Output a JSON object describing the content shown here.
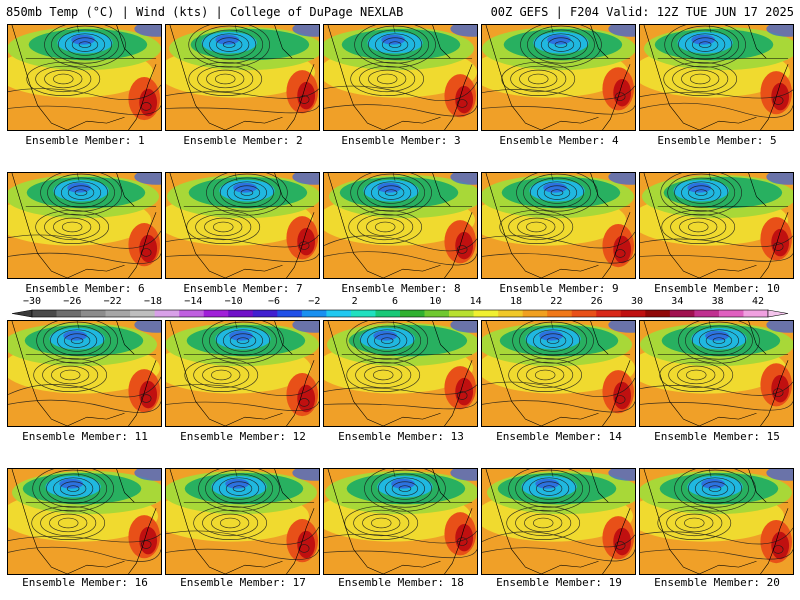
{
  "header": {
    "title_left": "850mb Temp (°C) | Wind (kts) | College of DuPage NEXLAB",
    "title_right": "00Z GEFS | F204 Valid: 12Z TUE JUN 17 2025"
  },
  "members": [
    {
      "label": "Ensemble Member: 1"
    },
    {
      "label": "Ensemble Member: 2"
    },
    {
      "label": "Ensemble Member: 3"
    },
    {
      "label": "Ensemble Member: 4"
    },
    {
      "label": "Ensemble Member: 5"
    },
    {
      "label": "Ensemble Member: 6"
    },
    {
      "label": "Ensemble Member: 7"
    },
    {
      "label": "Ensemble Member: 8"
    },
    {
      "label": "Ensemble Member: 9"
    },
    {
      "label": "Ensemble Member: 10"
    },
    {
      "label": "Ensemble Member: 11"
    },
    {
      "label": "Ensemble Member: 12"
    },
    {
      "label": "Ensemble Member: 13"
    },
    {
      "label": "Ensemble Member: 14"
    },
    {
      "label": "Ensemble Member: 15"
    },
    {
      "label": "Ensemble Member: 16"
    },
    {
      "label": "Ensemble Member: 17"
    },
    {
      "label": "Ensemble Member: 18"
    },
    {
      "label": "Ensemble Member: 19"
    },
    {
      "label": "Ensemble Member: 20"
    }
  ],
  "colorbar": {
    "labels": [
      "−30",
      "−26",
      "−22",
      "−18",
      "−14",
      "−10",
      "−6",
      "−2",
      "2",
      "6",
      "10",
      "14",
      "18",
      "22",
      "26",
      "30",
      "34",
      "38",
      "42"
    ],
    "colors": [
      "#4a4a4a",
      "#6e6e6e",
      "#8c8c8c",
      "#a6a6a6",
      "#bebebe",
      "#d8a0e8",
      "#c060e0",
      "#a020d8",
      "#7010c8",
      "#4020d0",
      "#2050e8",
      "#1890f0",
      "#20c8f0",
      "#20e0c0",
      "#18c878",
      "#30b030",
      "#70c830",
      "#b8e030",
      "#f0f030",
      "#f0c828",
      "#f0a020",
      "#f07818",
      "#e85018",
      "#d82818",
      "#c01010",
      "#900808",
      "#a01050",
      "#c03090",
      "#e060c0",
      "#f0a0e0"
    ]
  },
  "map_colors": {
    "cold_deep": "#3060e0",
    "cold": "#20b8e0",
    "cool": "#28b060",
    "mild": "#a8d838",
    "warm": "#f0e030",
    "hot": "#f0a028",
    "very_hot": "#e85018",
    "extreme": "#c01010"
  }
}
